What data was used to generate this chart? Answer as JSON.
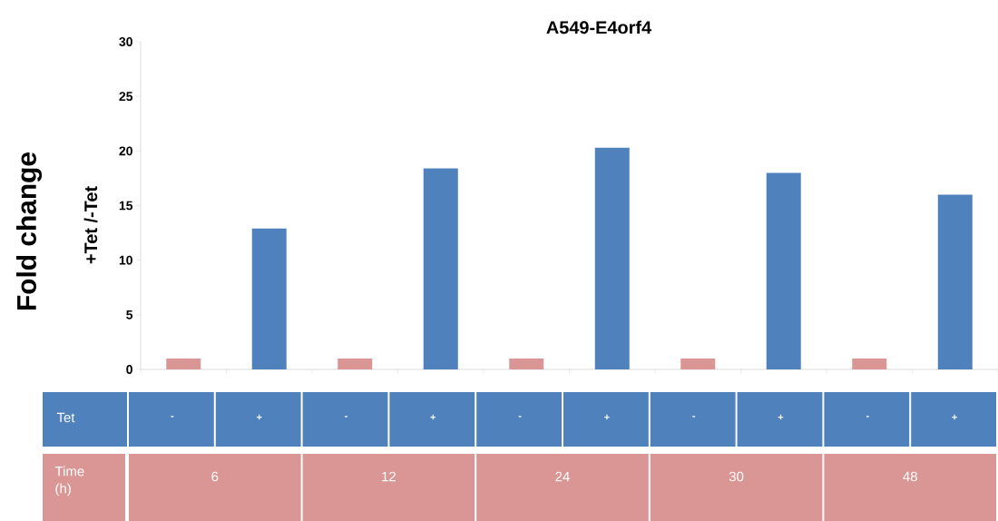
{
  "chart_data": {
    "type": "bar",
    "title": "A549-E4orf4",
    "ylabel": "Fold change",
    "categories": [
      "-",
      "+",
      "-",
      "+",
      "-",
      "+",
      "-",
      "+",
      "-",
      "+"
    ],
    "values": [
      1,
      12.9,
      1,
      18.4,
      1,
      20.3,
      1,
      18.0,
      1,
      16.0
    ],
    "colors": [
      "#d99694",
      "#4f81bd",
      "#d99694",
      "#4f81bd",
      "#d99694",
      "#4f81bd",
      "#d99694",
      "#4f81bd",
      "#d99694",
      "#4f81bd"
    ],
    "ylim": [
      0,
      30
    ],
    "yticks": [
      0,
      5,
      10,
      15,
      20,
      25,
      30
    ],
    "annotations": [
      "+Tet /-Tet",
      "Tet",
      "Time (h)",
      "6",
      "12",
      "24",
      "30",
      "48"
    ]
  }
}
